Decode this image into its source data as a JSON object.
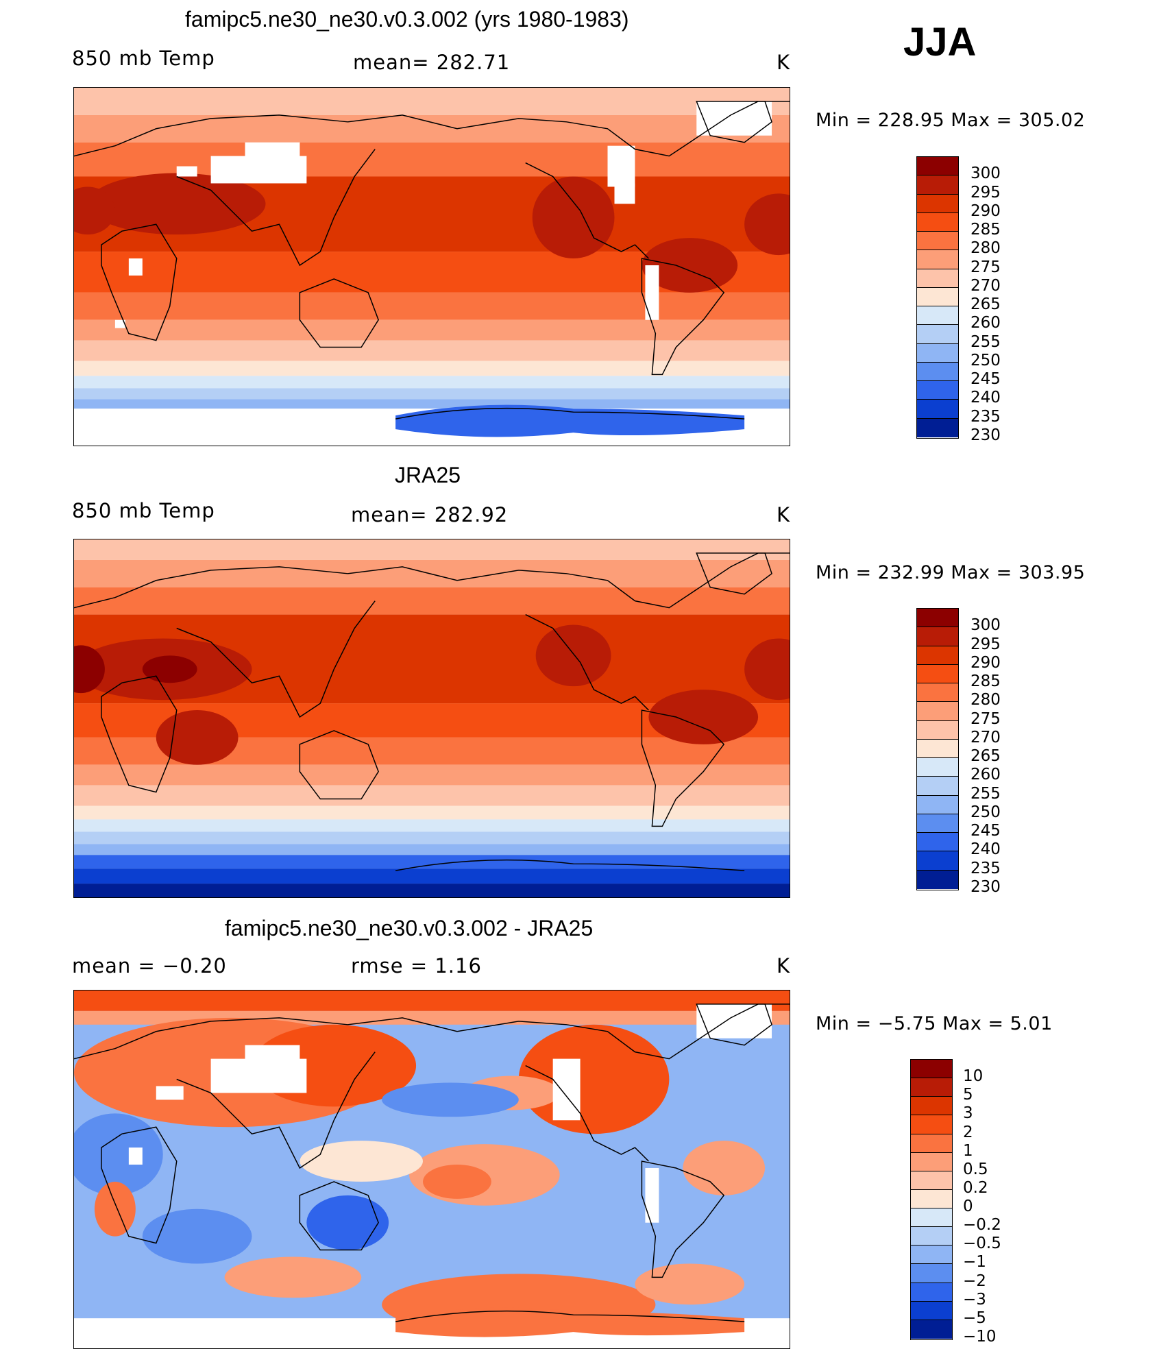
{
  "season": "JJA",
  "panels": [
    {
      "id": "model",
      "title": "famipc5.ne30_ne30.v0.3.002 (yrs 1980-1983)",
      "left_label": "850 mb Temp",
      "center_label": "mean= 282.71",
      "unit": "K",
      "minmax": "Min = 228.95 Max = 305.02",
      "colorbar_levels": [
        "300",
        "295",
        "290",
        "285",
        "280",
        "275",
        "270",
        "265",
        "260",
        "255",
        "250",
        "245",
        "240",
        "235",
        "230"
      ],
      "colors": [
        "#8c0000",
        "#b81c06",
        "#dc3500",
        "#f54e12",
        "#fa7340",
        "#fc9e78",
        "#fdc3aa",
        "#fde6d4",
        "#d7e8f8",
        "#b4cff5",
        "#8fb5f4",
        "#5c8ef0",
        "#2f64eb",
        "#0b3fd0",
        "#001e94"
      ]
    },
    {
      "id": "obs",
      "title": "JRA25",
      "left_label": "850 mb Temp",
      "center_label": "mean= 282.92",
      "unit": "K",
      "minmax": "Min = 232.99 Max = 303.95",
      "colorbar_levels": [
        "300",
        "295",
        "290",
        "285",
        "280",
        "275",
        "270",
        "265",
        "260",
        "255",
        "250",
        "245",
        "240",
        "235",
        "230"
      ],
      "colors": [
        "#8c0000",
        "#b81c06",
        "#dc3500",
        "#f54e12",
        "#fa7340",
        "#fc9e78",
        "#fdc3aa",
        "#fde6d4",
        "#d7e8f8",
        "#b4cff5",
        "#8fb5f4",
        "#5c8ef0",
        "#2f64eb",
        "#0b3fd0",
        "#001e94"
      ]
    },
    {
      "id": "diff",
      "title": "famipc5.ne30_ne30.v0.3.002 - JRA25",
      "left_label": "mean =   −0.20",
      "center_label": "rmse =    1.16",
      "unit": "K",
      "minmax": "Min =  −5.75 Max =    5.01",
      "colorbar_levels": [
        "10",
        "5",
        "3",
        "2",
        "1",
        "0.5",
        "0.2",
        "0",
        "−0.2",
        "−0.5",
        "−1",
        "−2",
        "−3",
        "−5",
        "−10"
      ],
      "colors": [
        "#8c0000",
        "#b81c06",
        "#dc3500",
        "#f54e12",
        "#fa7340",
        "#fc9e78",
        "#fdc3aa",
        "#fde6d4",
        "#d7e8f8",
        "#b4cff5",
        "#8fb5f4",
        "#5c8ef0",
        "#2f64eb",
        "#0b3fd0",
        "#001e94"
      ]
    }
  ]
}
